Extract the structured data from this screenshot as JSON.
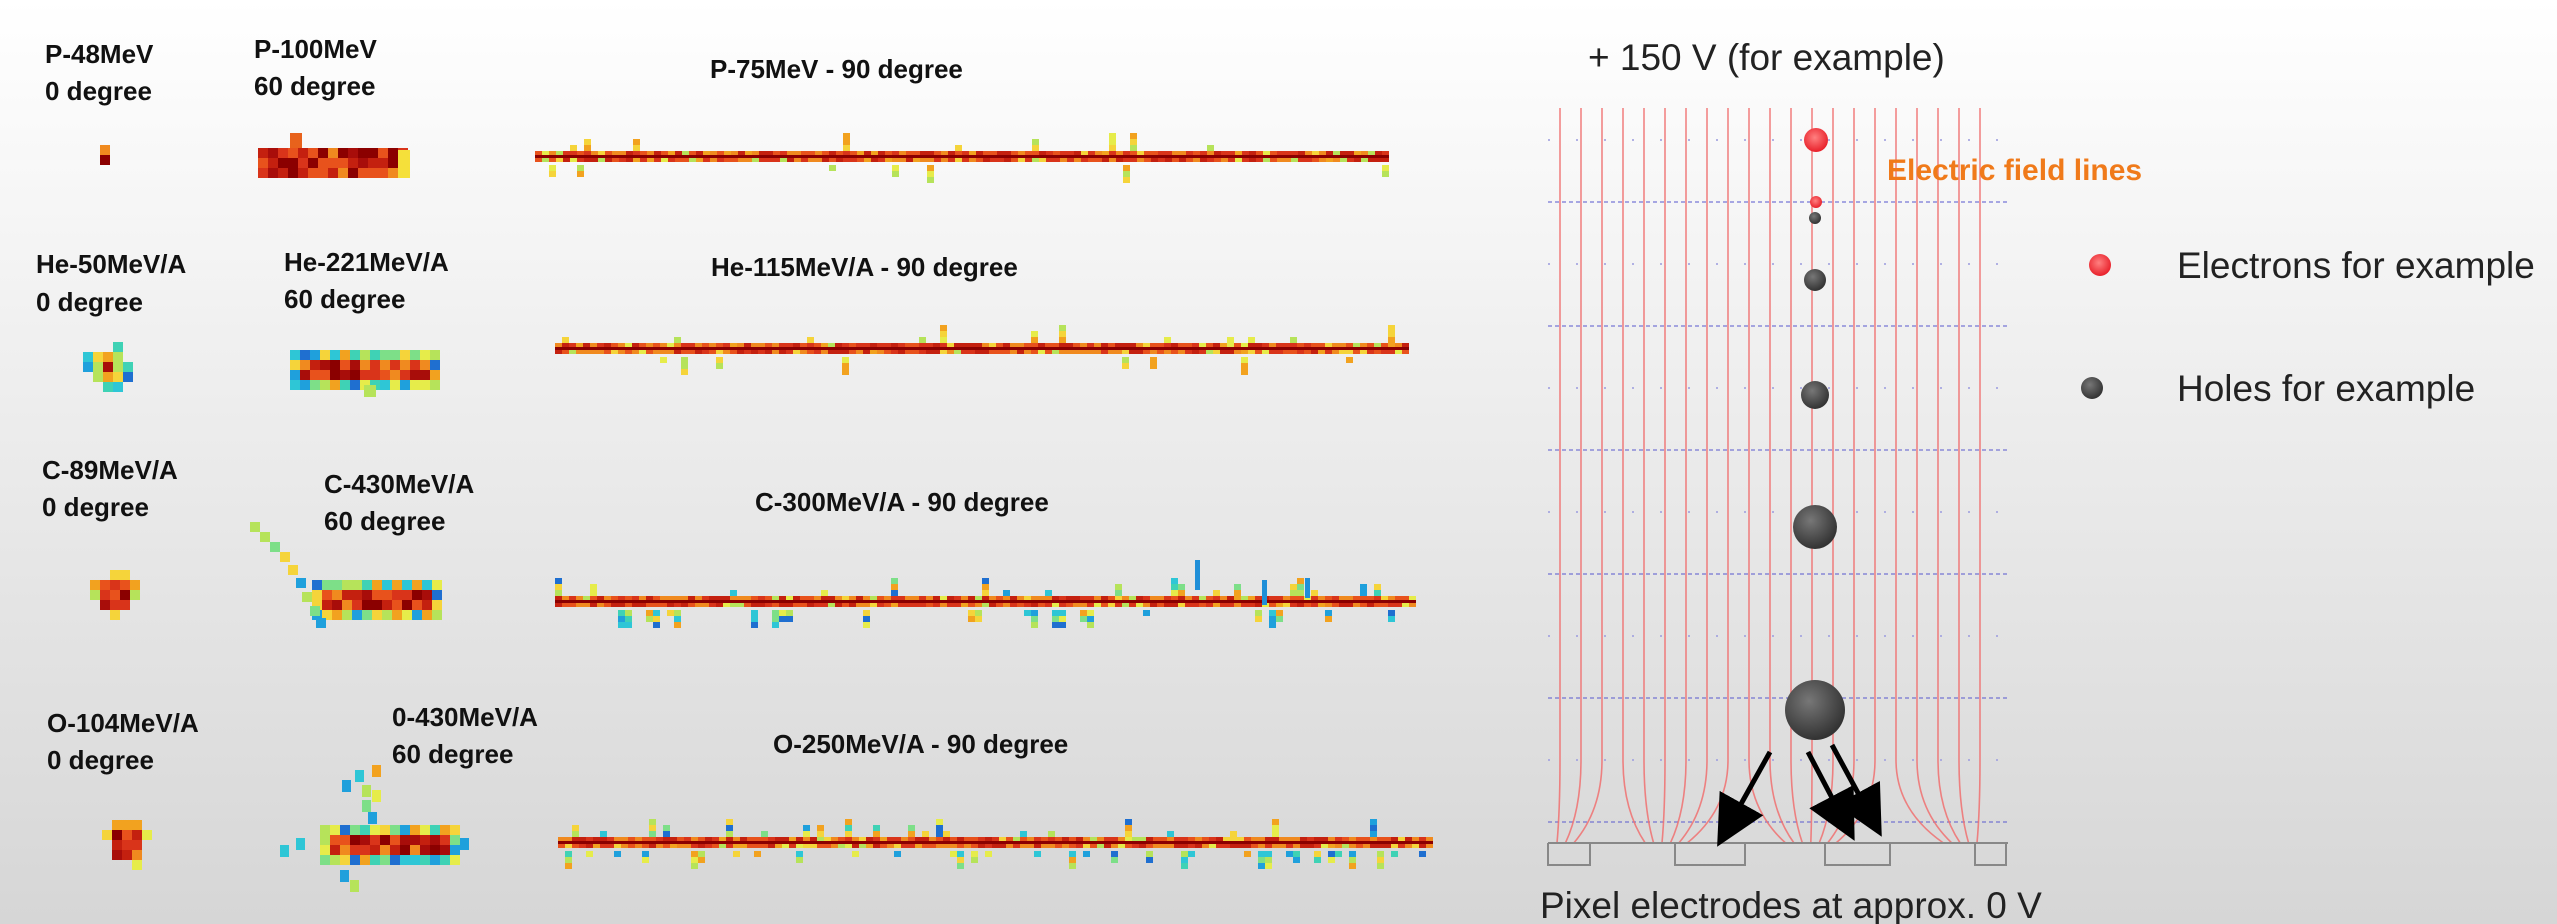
{
  "rows": [
    [
      {
        "name": "P-48MeV",
        "angle": "0 degree"
      },
      {
        "name": "P-100MeV",
        "angle": "60 degree"
      },
      {
        "label": "P-75MeV - 90 degree"
      }
    ],
    [
      {
        "name": "He-50MeV/A",
        "angle": "0 degree"
      },
      {
        "name": "He-221MeV/A",
        "angle": "60 degree"
      },
      {
        "label": "He-115MeV/A - 90 degree"
      }
    ],
    [
      {
        "name": "C-89MeV/A",
        "angle": "0 degree"
      },
      {
        "name": "C-430MeV/A",
        "angle": "60 degree"
      },
      {
        "label": "C-300MeV/A - 90 degree"
      }
    ],
    [
      {
        "name": "O-104MeV/A",
        "angle": "0 degree"
      },
      {
        "name": "0-430MeV/A",
        "angle": "60 degree"
      },
      {
        "label": "O-250MeV/A - 90 degree"
      }
    ]
  ],
  "diagram": {
    "supply": "+ 150 V (for example)",
    "field_label": "Electric field lines",
    "legend": [
      {
        "label": "Electrons for example"
      },
      {
        "label": "Holes for example"
      }
    ],
    "electrodes": "Pixel electrodes at approx. 0 V"
  }
}
